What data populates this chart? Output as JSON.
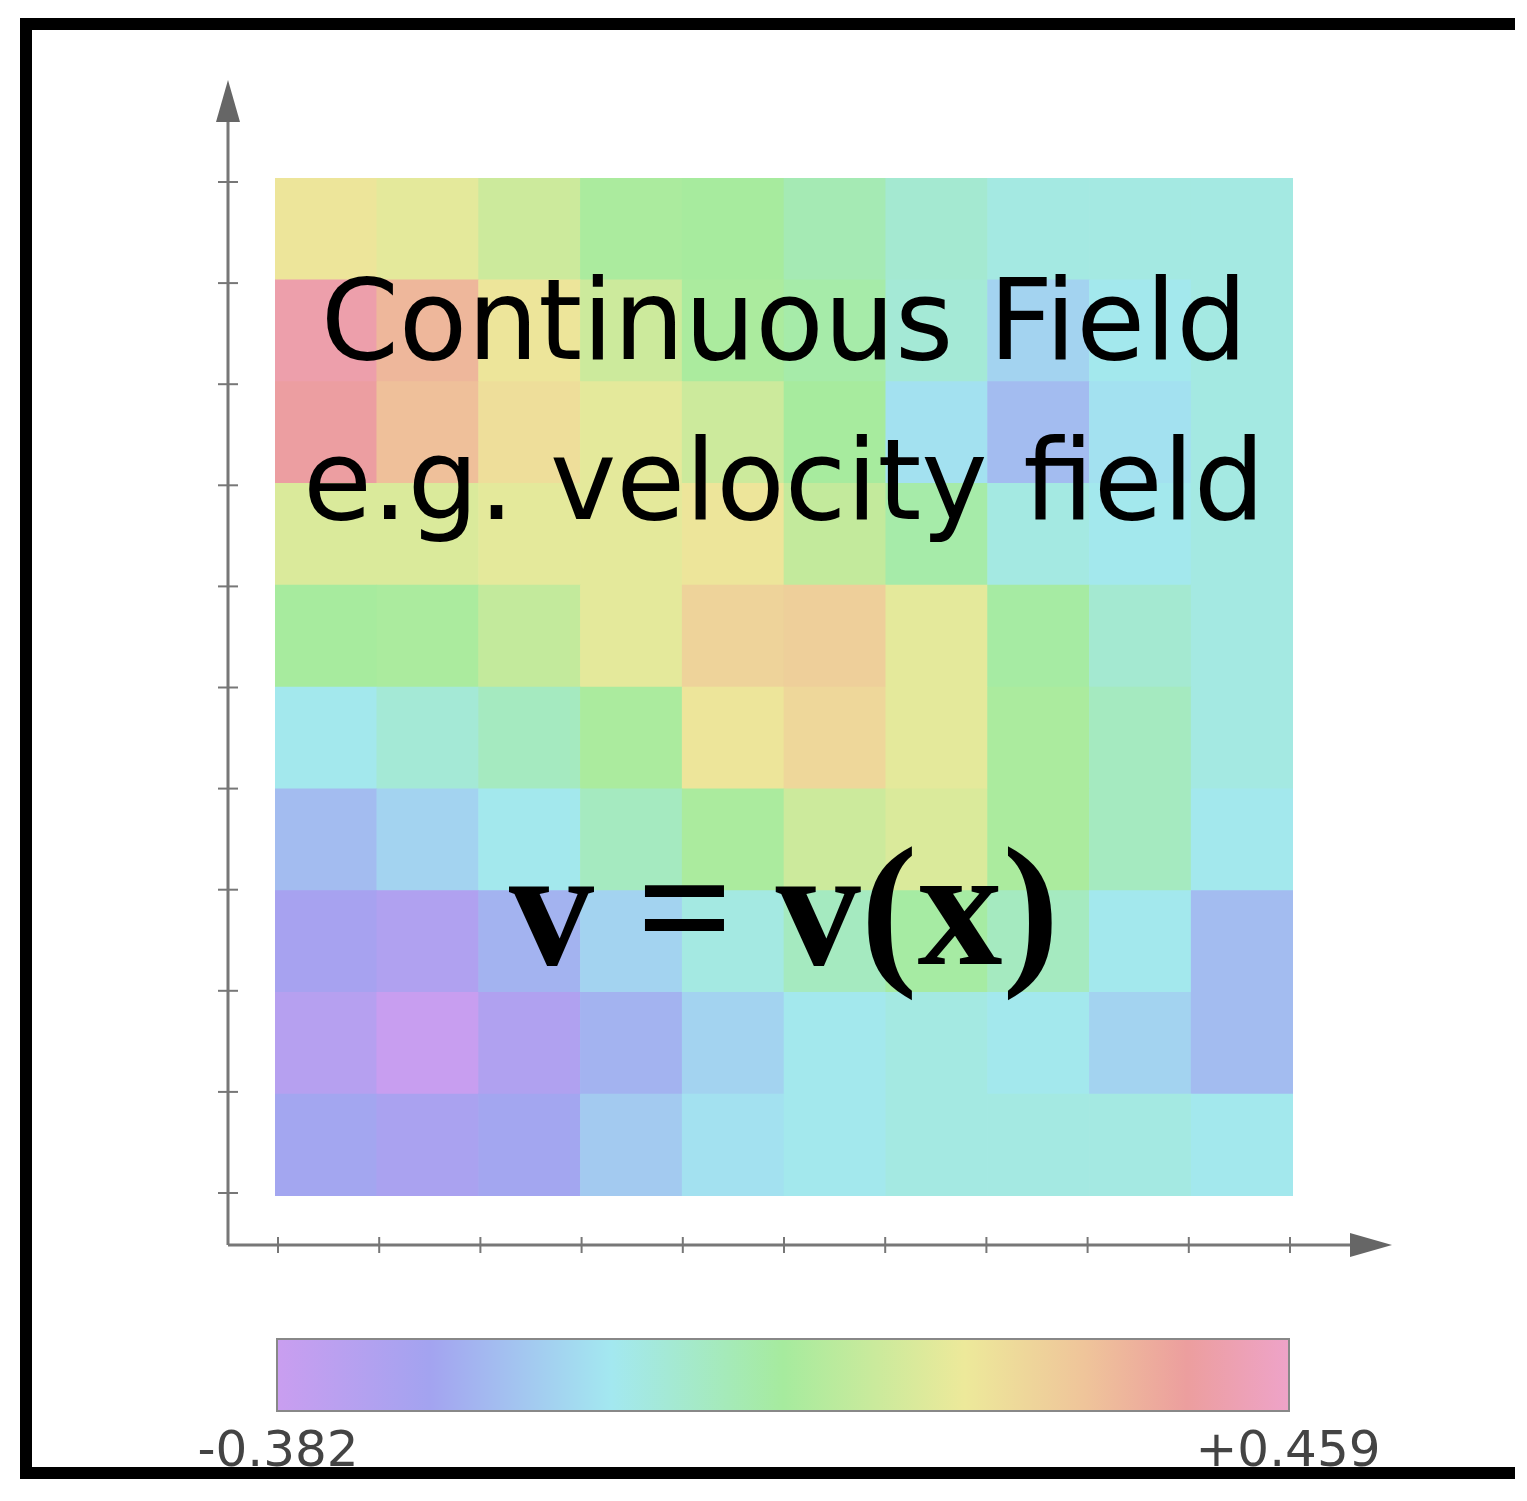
{
  "chart_data": {
    "type": "heatmap",
    "categories": [
      null,
      null,
      null,
      null,
      null,
      null,
      null,
      null,
      null,
      null
    ],
    "y_categories": [
      null,
      null,
      null,
      null,
      null,
      null,
      null,
      null,
      null,
      null
    ],
    "cells": [
      [
        0.2,
        0.17,
        0.12,
        0.05,
        0.04,
        0.0,
        -0.05,
        -0.08,
        -0.08,
        -0.08
      ],
      [
        0.4,
        0.32,
        0.2,
        0.12,
        0.05,
        0.02,
        -0.06,
        -0.15,
        -0.1,
        -0.08
      ],
      [
        0.38,
        0.3,
        0.22,
        0.17,
        0.12,
        0.04,
        -0.12,
        -0.2,
        -0.12,
        -0.08
      ],
      [
        0.15,
        0.15,
        0.17,
        0.17,
        0.2,
        0.1,
        0.02,
        -0.08,
        -0.1,
        -0.08
      ],
      [
        0.04,
        0.05,
        0.1,
        0.17,
        0.25,
        0.26,
        0.17,
        0.03,
        -0.05,
        -0.08
      ],
      [
        -0.1,
        -0.06,
        -0.02,
        0.05,
        0.2,
        0.24,
        0.17,
        0.05,
        -0.02,
        -0.08
      ],
      [
        -0.2,
        -0.15,
        -0.1,
        -0.02,
        0.05,
        0.12,
        0.15,
        0.05,
        -0.02,
        -0.1
      ],
      [
        -0.27,
        -0.3,
        -0.22,
        -0.15,
        -0.08,
        -0.02,
        0.03,
        -0.02,
        -0.1,
        -0.2
      ],
      [
        -0.32,
        -0.38,
        -0.3,
        -0.22,
        -0.15,
        -0.1,
        -0.08,
        -0.1,
        -0.15,
        -0.2
      ],
      [
        -0.25,
        -0.28,
        -0.25,
        -0.17,
        -0.12,
        -0.1,
        -0.08,
        -0.08,
        -0.08,
        -0.1
      ]
    ],
    "clim": [
      -0.382,
      0.459
    ],
    "cticks": [
      {
        "value": -0.382,
        "label": "-0.382"
      },
      {
        "value": 0.459,
        "label": "+0.459"
      }
    ],
    "annotations": [
      "Continuous Field",
      "e.g. velocity field",
      "v = v(x)"
    ]
  }
}
